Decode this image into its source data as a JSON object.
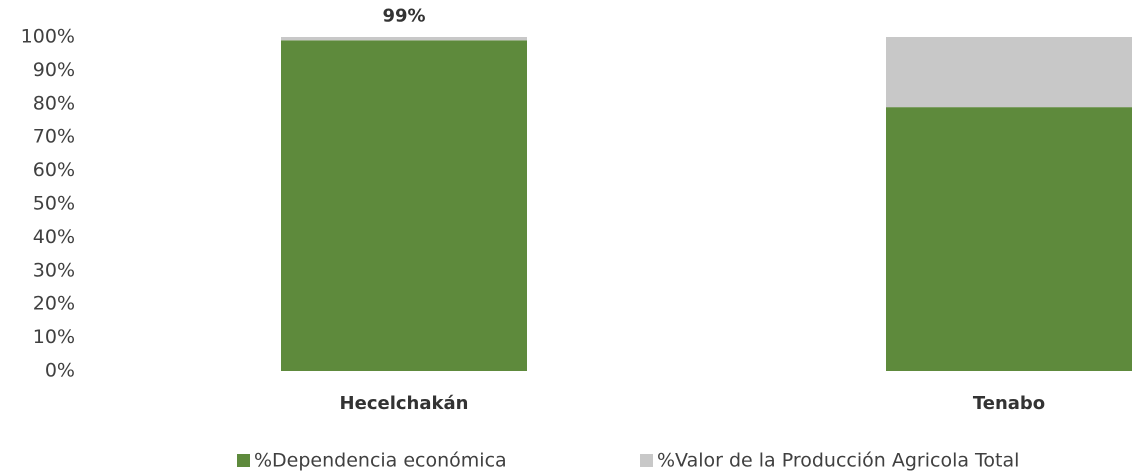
{
  "chart_data": {
    "type": "stacked_bar",
    "categories": [
      "Hecelchakán",
      "Tenabo"
    ],
    "series": [
      {
        "name": "%Dependencia económica",
        "color": "#5e8a3c",
        "values": [
          99,
          79
        ],
        "value_labels": [
          "99%",
          "79%"
        ]
      },
      {
        "name": "%Valor de la Producción Agricola Total",
        "color": "#c8c8c8",
        "values": [
          1,
          21
        ]
      }
    ],
    "ylim": [
      0,
      100
    ],
    "yticks": [
      {
        "value": 0,
        "label": "0%"
      },
      {
        "value": 10,
        "label": "10%"
      },
      {
        "value": 20,
        "label": "20%"
      },
      {
        "value": 30,
        "label": "30%"
      },
      {
        "value": 40,
        "label": "40%"
      },
      {
        "value": 50,
        "label": "50%"
      },
      {
        "value": 60,
        "label": "60%"
      },
      {
        "value": 70,
        "label": "70%"
      },
      {
        "value": 80,
        "label": "80%"
      },
      {
        "value": 90,
        "label": "90%"
      },
      {
        "value": 100,
        "label": "100%"
      }
    ],
    "legend": "bottom"
  }
}
